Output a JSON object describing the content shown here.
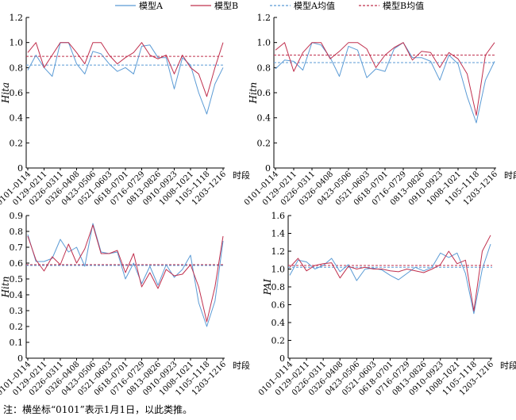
{
  "legend": {
    "items": [
      {
        "label": "模型A",
        "color": "#5B9BD5",
        "style": "solid"
      },
      {
        "label": "模型B",
        "color": "#C0304E",
        "style": "solid"
      },
      {
        "label": "模型A均值",
        "color": "#5B9BD5",
        "style": "dashed"
      },
      {
        "label": "模型B均值",
        "color": "#C0304E",
        "style": "dashed"
      }
    ]
  },
  "note": "注：横坐标“0101”表示1月1日，以此类推。",
  "chart_data": [
    {
      "type": "line",
      "ylabel": "Hita",
      "xlabel": "时段",
      "ylim": [
        0,
        1.2
      ],
      "yticks": [
        "0",
        "0.2",
        "0.4",
        "0.6",
        "0.8",
        "1.0",
        "1.2"
      ],
      "categories": [
        "0101–0114",
        "0129–0211",
        "0226–0311",
        "0326–0408",
        "0423–0506",
        "0521–0603",
        "0618–0701",
        "0716–0729",
        "0813–0826",
        "0910–0923",
        "1008–1021",
        "1105–1118",
        "1203–1216"
      ],
      "x": [
        0,
        0.5,
        1,
        1.5,
        2,
        2.5,
        3,
        3.5,
        4,
        4.5,
        5,
        5.5,
        6,
        6.5,
        7,
        7.5,
        8,
        8.5,
        9,
        9.5,
        10,
        10.5,
        11,
        11.5,
        12
      ],
      "series": [
        {
          "name": "模型A",
          "values": [
            0.78,
            0.9,
            0.8,
            0.73,
            1.0,
            1.0,
            0.83,
            0.75,
            0.93,
            0.91,
            0.83,
            0.77,
            0.8,
            0.75,
            0.97,
            0.98,
            0.88,
            0.88,
            0.63,
            0.88,
            0.82,
            0.6,
            0.43,
            0.67,
            0.8
          ]
        },
        {
          "name": "模型B",
          "values": [
            0.92,
            1.0,
            0.8,
            0.9,
            1.0,
            1.0,
            0.92,
            0.83,
            1.0,
            1.0,
            0.9,
            0.83,
            0.88,
            0.92,
            1.0,
            0.9,
            0.87,
            0.9,
            0.75,
            0.9,
            0.8,
            0.75,
            0.57,
            0.8,
            1.0
          ]
        }
      ],
      "mean_lines": [
        {
          "series": "模型A均值",
          "value": 0.82
        },
        {
          "series": "模型B均值",
          "value": 0.89
        }
      ]
    },
    {
      "type": "line",
      "ylabel": "Hitn",
      "xlabel": "时段",
      "ylim": [
        0,
        1.2
      ],
      "yticks": [
        "0",
        "0.2",
        "0.4",
        "0.6",
        "0.8",
        "1.0",
        "1.2"
      ],
      "categories": [
        "0101–0114",
        "0129–0211",
        "0226–0311",
        "0326–0408",
        "0423–0506",
        "0521–0603",
        "0618–0701",
        "0716–0729",
        "0813–0826",
        "0910–0923",
        "1008–1021",
        "1105–1118",
        "1203–1216"
      ],
      "x": [
        0,
        0.5,
        1,
        1.5,
        2,
        2.5,
        3,
        3.5,
        4,
        4.5,
        5,
        5.5,
        6,
        6.5,
        7,
        7.5,
        8,
        8.5,
        9,
        9.5,
        10,
        10.5,
        11,
        11.5,
        12
      ],
      "series": [
        {
          "name": "模型A",
          "values": [
            0.79,
            0.86,
            0.85,
            0.78,
            1.0,
            0.98,
            0.88,
            0.73,
            0.97,
            0.94,
            0.72,
            0.79,
            0.77,
            0.95,
            1.0,
            0.88,
            0.88,
            0.85,
            0.7,
            0.9,
            0.83,
            0.57,
            0.36,
            0.7,
            0.85
          ]
        },
        {
          "name": "模型B",
          "values": [
            0.94,
            1.0,
            0.77,
            0.92,
            1.0,
            1.0,
            0.87,
            0.93,
            1.0,
            1.0,
            0.95,
            0.8,
            0.9,
            0.96,
            1.0,
            0.86,
            0.93,
            0.92,
            0.8,
            0.92,
            0.87,
            0.75,
            0.42,
            0.9,
            1.0
          ]
        }
      ],
      "mean_lines": [
        {
          "series": "模型A均值",
          "value": 0.84
        },
        {
          "series": "模型B均值",
          "value": 0.9
        }
      ]
    },
    {
      "type": "line",
      "ylabel": "Hitn",
      "xlabel": "时段",
      "ylim": [
        0,
        0.9
      ],
      "yticks": [
        "0",
        "0.1",
        "0.2",
        "0.3",
        "0.4",
        "0.5",
        "0.6",
        "0.7",
        "0.8",
        "0.9"
      ],
      "categories": [
        "0101–0114",
        "0129–0211",
        "0226–0311",
        "0326–0408",
        "0423–0506",
        "0521–0603",
        "0618–0701",
        "0716–0729",
        "0813–0826",
        "0910–0923",
        "1008–1021",
        "1105–1118",
        "1203–1216"
      ],
      "x": [
        0,
        0.5,
        1,
        1.5,
        2,
        2.5,
        3,
        3.5,
        4,
        4.5,
        5,
        5.5,
        6,
        6.5,
        7,
        7.5,
        8,
        8.5,
        9,
        9.5,
        10,
        10.5,
        11,
        11.5,
        12
      ],
      "series": [
        {
          "name": "模型A",
          "values": [
            0.78,
            0.61,
            0.61,
            0.63,
            0.75,
            0.67,
            0.7,
            0.58,
            0.85,
            0.67,
            0.66,
            0.67,
            0.5,
            0.6,
            0.47,
            0.58,
            0.46,
            0.59,
            0.51,
            0.56,
            0.65,
            0.35,
            0.2,
            0.36,
            0.74
          ]
        },
        {
          "name": "模型B",
          "values": [
            0.77,
            0.62,
            0.55,
            0.64,
            0.59,
            0.72,
            0.6,
            0.69,
            0.84,
            0.66,
            0.66,
            0.68,
            0.54,
            0.66,
            0.45,
            0.54,
            0.44,
            0.56,
            0.52,
            0.53,
            0.59,
            0.45,
            0.23,
            0.45,
            0.77
          ]
        }
      ],
      "mean_lines": [
        {
          "series": "模型A均值",
          "value": 0.585
        },
        {
          "series": "模型B均值",
          "value": 0.59
        }
      ]
    },
    {
      "type": "line",
      "ylabel": "PAI",
      "xlabel": "时段",
      "ylim": [
        0,
        1.6
      ],
      "yticks": [
        "0",
        "0.2",
        "0.4",
        "0.6",
        "0.8",
        "1.0",
        "1.2",
        "1.4",
        "1.6"
      ],
      "categories": [
        "0101–0114",
        "0129–0211",
        "0226–0311",
        "0326–0408",
        "0423–0506",
        "0521–0603",
        "0618–0701",
        "0716–0729",
        "0813–0826",
        "0910–0923",
        "1008–1021",
        "1105–1118",
        "1203–1216"
      ],
      "x": [
        0,
        0.5,
        1,
        1.5,
        2,
        2.5,
        3,
        3.5,
        4,
        4.5,
        5,
        5.5,
        6,
        6.5,
        7,
        7.5,
        8,
        8.5,
        9,
        9.5,
        10,
        10.5,
        11,
        11.5,
        12
      ],
      "series": [
        {
          "name": "模型A",
          "values": [
            0.93,
            1.1,
            1.08,
            1.0,
            1.04,
            1.12,
            0.97,
            1.05,
            0.87,
            1.0,
            1.01,
            0.99,
            0.93,
            0.88,
            0.95,
            1.02,
            0.98,
            1.02,
            1.18,
            1.13,
            1.18,
            0.95,
            0.5,
            1.0,
            1.28
          ]
        },
        {
          "name": "模型B",
          "values": [
            1.02,
            1.12,
            0.98,
            1.04,
            1.06,
            1.07,
            0.9,
            1.03,
            1.0,
            1.02,
            1.0,
            1.0,
            0.98,
            0.97,
            1.0,
            0.98,
            0.96,
            1.0,
            1.05,
            1.2,
            1.06,
            1.1,
            0.53,
            1.2,
            1.38
          ]
        }
      ],
      "mean_lines": [
        {
          "series": "模型A均值",
          "value": 1.02
        },
        {
          "series": "模型B均值",
          "value": 1.04
        }
      ]
    }
  ]
}
